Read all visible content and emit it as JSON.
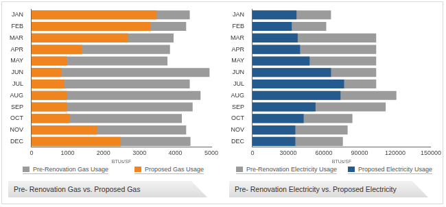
{
  "chart_data": [
    {
      "type": "bar",
      "orientation": "horizontal",
      "stacked": false,
      "grid": false,
      "legend": "bottom",
      "title": "Pre- Renovation Gas vs. Proposed Gas",
      "xlabel": "BTUs/SF",
      "categories": [
        "JAN",
        "FEB",
        "MAR",
        "APR",
        "MAY",
        "JUN",
        "JUL",
        "AUG",
        "SEP",
        "OCT",
        "NOV",
        "DEC"
      ],
      "series": [
        {
          "name": "Pre-Renovation Gas Usage",
          "color": "#9b9b9b",
          "values": [
            4400,
            4300,
            3950,
            3850,
            3780,
            4950,
            4400,
            4700,
            4480,
            4180,
            4300,
            4420
          ]
        },
        {
          "name": "Proposed Gas Usage",
          "color": "#f0841e",
          "values": [
            3480,
            3300,
            2680,
            1400,
            980,
            820,
            900,
            980,
            980,
            1060,
            1820,
            2480
          ]
        }
      ],
      "xlim": [
        0,
        5000
      ],
      "xticks": [
        0,
        1000,
        2000,
        3000,
        4000,
        5000
      ]
    },
    {
      "type": "bar",
      "orientation": "horizontal",
      "stacked": false,
      "grid": false,
      "legend": "bottom",
      "title": "Pre- Renovation Electricity vs. Proposed Electricity",
      "xlabel": "BTUs/SF",
      "categories": [
        "JAN",
        "FEB",
        "MAR",
        "APR",
        "MAY",
        "JUN",
        "JUL",
        "AUG",
        "SEP",
        "OCT",
        "NOV",
        "DEC"
      ],
      "series": [
        {
          "name": "Pre-Renovation Electricity Usage",
          "color": "#9b9b9b",
          "values": [
            66000,
            62000,
            104000,
            104000,
            104000,
            104000,
            104000,
            121000,
            112000,
            84000,
            80000,
            76000
          ]
        },
        {
          "name": "Proposed Electricity Usage",
          "color": "#245a8d",
          "values": [
            37000,
            33000,
            38000,
            40000,
            48000,
            66000,
            77000,
            74000,
            53000,
            43000,
            36000,
            36000
          ]
        }
      ],
      "xlim": [
        0,
        150000
      ],
      "xticks": [
        0,
        30000,
        60000,
        90000,
        120000,
        150000
      ]
    }
  ]
}
